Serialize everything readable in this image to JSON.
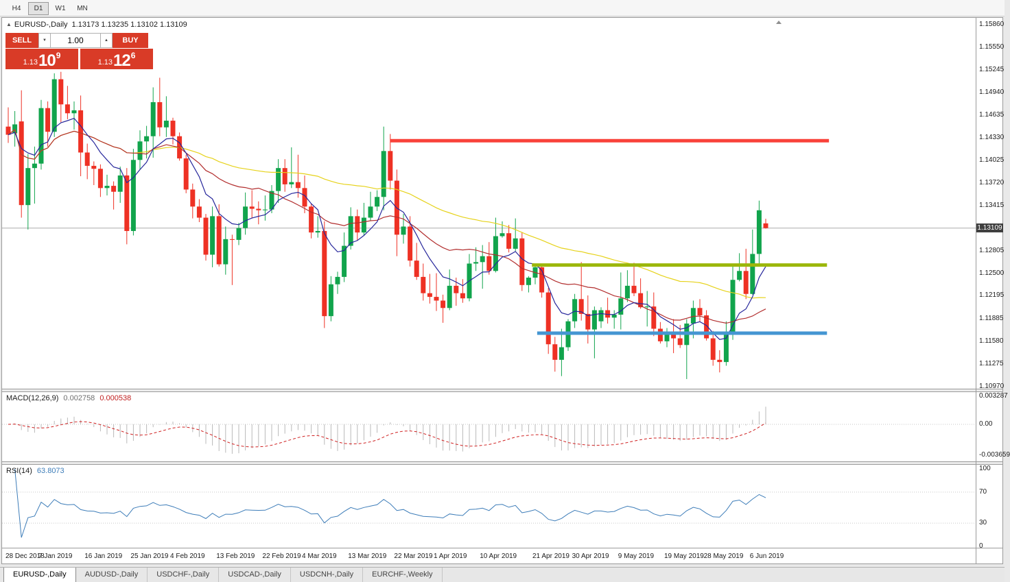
{
  "toolbar": {
    "buttons": [
      {
        "label": "H4",
        "active": false
      },
      {
        "label": "D1",
        "active": true
      },
      {
        "label": "W1",
        "active": false
      },
      {
        "label": "MN",
        "active": false
      }
    ]
  },
  "chart": {
    "title": {
      "collapse_arrow": "▲",
      "symbol": "EURUSD-,Daily",
      "ohlc": "1.13173 1.13235 1.13102 1.13109"
    },
    "trade_panel": {
      "sell_label": "SELL",
      "buy_label": "BUY",
      "volume": "1.00",
      "spin_down": "▼",
      "spin_up": "▲",
      "sell_price": {
        "prefix": "1.13",
        "big": "10",
        "sup": "9"
      },
      "buy_price": {
        "prefix": "1.13",
        "big": "12",
        "sup": "6"
      },
      "panel_color": "#d93b27"
    },
    "price_axis": {
      "labels": [
        "1.15860",
        "1.15550",
        "1.15245",
        "1.14940",
        "1.14635",
        "1.14330",
        "1.14025",
        "1.13720",
        "1.13415",
        "1.12805",
        "1.12500",
        "1.12195",
        "1.11885",
        "1.11580",
        "1.11275",
        "1.10970"
      ],
      "current_tag": "1.13109"
    },
    "date_axis": {
      "labels": [
        {
          "text": "28 Dec 2018",
          "i": 0
        },
        {
          "text": "7 Jan 2019",
          "i": 5
        },
        {
          "text": "16 Jan 2019",
          "i": 12
        },
        {
          "text": "25 Jan 2019",
          "i": 19
        },
        {
          "text": "4 Feb 2019",
          "i": 25
        },
        {
          "text": "13 Feb 2019",
          "i": 32
        },
        {
          "text": "22 Feb 2019",
          "i": 39
        },
        {
          "text": "4 Mar 2019",
          "i": 45
        },
        {
          "text": "13 Mar 2019",
          "i": 52
        },
        {
          "text": "22 Mar 2019",
          "i": 59
        },
        {
          "text": "1 Apr 2019",
          "i": 65
        },
        {
          "text": "10 Apr 2019",
          "i": 72
        },
        {
          "text": "21 Apr 2019",
          "i": 80
        },
        {
          "text": "30 Apr 2019",
          "i": 86
        },
        {
          "text": "9 May 2019",
          "i": 93
        },
        {
          "text": "19 May 2019",
          "i": 100
        },
        {
          "text": "28 May 2019",
          "i": 106
        },
        {
          "text": "6 Jun 2019",
          "i": 113
        }
      ]
    }
  },
  "macd_panel": {
    "header": "MACD(12,26,9)",
    "value_main": "0.002758",
    "value_signal": "0.000538",
    "axis": [
      {
        "text": "0.003287",
        "v": 0.003287
      },
      {
        "text": "0.00",
        "v": 0
      },
      {
        "text": "-0.003659",
        "v": -0.003659
      }
    ]
  },
  "rsi_panel": {
    "header": "RSI(14)",
    "value": "63.8073",
    "axis": [
      {
        "text": "100",
        "v": 100
      },
      {
        "text": "70",
        "v": 70
      },
      {
        "text": "30",
        "v": 30
      },
      {
        "text": "0",
        "v": 0
      }
    ]
  },
  "tabs": [
    {
      "label": "EURUSD-,Daily",
      "active": true
    },
    {
      "label": "AUDUSD-,Daily",
      "active": false
    },
    {
      "label": "USDCHF-,Daily",
      "active": false
    },
    {
      "label": "USDCAD-,Daily",
      "active": false
    },
    {
      "label": "USDCNH-,Daily",
      "active": false
    },
    {
      "label": "EURCHF-,Weekly",
      "active": false
    }
  ],
  "chart_data": {
    "type": "candlestick",
    "symbol": "EURUSD",
    "timeframe": "Daily",
    "ylim": [
      1.1094,
      1.1594
    ],
    "up_color": "#11a44c",
    "down_color": "#ee3124",
    "candles": [
      [
        1.1448,
        1.1474,
        1.1426,
        1.1437
      ],
      [
        1.1439,
        1.1469,
        1.1421,
        1.1451
      ],
      [
        1.1455,
        1.1497,
        1.1325,
        1.1342
      ],
      [
        1.1342,
        1.1411,
        1.1309,
        1.1392
      ],
      [
        1.1392,
        1.1421,
        1.1344,
        1.1398
      ],
      [
        1.1398,
        1.1484,
        1.139,
        1.1473
      ],
      [
        1.1473,
        1.1482,
        1.1421,
        1.1441
      ],
      [
        1.1441,
        1.152,
        1.1434,
        1.1512
      ],
      [
        1.1512,
        1.1522,
        1.1454,
        1.1478
      ],
      [
        1.1478,
        1.1503,
        1.1458,
        1.1466
      ],
      [
        1.1466,
        1.1482,
        1.1444,
        1.147
      ],
      [
        1.147,
        1.149,
        1.1381,
        1.1413
      ],
      [
        1.1413,
        1.1425,
        1.1377,
        1.1395
      ],
      [
        1.1395,
        1.1401,
        1.1369,
        1.1391
      ],
      [
        1.1391,
        1.1397,
        1.1353,
        1.1365
      ],
      [
        1.1365,
        1.1383,
        1.1355,
        1.1368
      ],
      [
        1.1368,
        1.1374,
        1.1336,
        1.136
      ],
      [
        1.136,
        1.1394,
        1.1345,
        1.1382
      ],
      [
        1.1382,
        1.1392,
        1.1289,
        1.1307
      ],
      [
        1.1307,
        1.1418,
        1.1301,
        1.1403
      ],
      [
        1.1403,
        1.1443,
        1.139,
        1.1428
      ],
      [
        1.1428,
        1.1449,
        1.1405,
        1.1435
      ],
      [
        1.1435,
        1.1501,
        1.1406,
        1.1481
      ],
      [
        1.1481,
        1.1514,
        1.1435,
        1.1447
      ],
      [
        1.1447,
        1.1489,
        1.1434,
        1.1456
      ],
      [
        1.1456,
        1.146,
        1.1424,
        1.1435
      ],
      [
        1.1435,
        1.144,
        1.1402,
        1.1405
      ],
      [
        1.1405,
        1.141,
        1.1358,
        1.1363
      ],
      [
        1.1363,
        1.1371,
        1.1324,
        1.134
      ],
      [
        1.134,
        1.135,
        1.1319,
        1.1325
      ],
      [
        1.1325,
        1.133,
        1.1267,
        1.1275
      ],
      [
        1.1275,
        1.134,
        1.1258,
        1.1327
      ],
      [
        1.1327,
        1.1343,
        1.1259,
        1.1262
      ],
      [
        1.1262,
        1.1313,
        1.1248,
        1.1296
      ],
      [
        1.1296,
        1.1302,
        1.1234,
        1.1295
      ],
      [
        1.1295,
        1.1318,
        1.1288,
        1.1311
      ],
      [
        1.1311,
        1.1359,
        1.1302,
        1.134
      ],
      [
        1.134,
        1.1362,
        1.1324,
        1.1337
      ],
      [
        1.1337,
        1.1347,
        1.1316,
        1.1335
      ],
      [
        1.1335,
        1.1355,
        1.1321,
        1.1336
      ],
      [
        1.1336,
        1.1369,
        1.1331,
        1.1361
      ],
      [
        1.1361,
        1.1404,
        1.1345,
        1.1392
      ],
      [
        1.1392,
        1.1404,
        1.136,
        1.137
      ],
      [
        1.137,
        1.142,
        1.1365,
        1.1373
      ],
      [
        1.1373,
        1.141,
        1.1352,
        1.1365
      ],
      [
        1.1365,
        1.1382,
        1.1331,
        1.134
      ],
      [
        1.134,
        1.1344,
        1.1297,
        1.1305
      ],
      [
        1.1305,
        1.1327,
        1.1298,
        1.1307
      ],
      [
        1.1307,
        1.132,
        1.1176,
        1.1192
      ],
      [
        1.1192,
        1.1246,
        1.1185,
        1.1235
      ],
      [
        1.1235,
        1.1252,
        1.1222,
        1.1245
      ],
      [
        1.1245,
        1.1305,
        1.1238,
        1.1287
      ],
      [
        1.1287,
        1.1339,
        1.1282,
        1.1327
      ],
      [
        1.1327,
        1.1336,
        1.1294,
        1.1305
      ],
      [
        1.1305,
        1.1345,
        1.1301,
        1.1325
      ],
      [
        1.1325,
        1.136,
        1.1321,
        1.134
      ],
      [
        1.134,
        1.1362,
        1.1334,
        1.1353
      ],
      [
        1.1353,
        1.1448,
        1.1335,
        1.1415
      ],
      [
        1.1415,
        1.1438,
        1.1363,
        1.1375
      ],
      [
        1.1375,
        1.139,
        1.1273,
        1.1302
      ],
      [
        1.1302,
        1.133,
        1.129,
        1.1313
      ],
      [
        1.1313,
        1.1327,
        1.1259,
        1.1267
      ],
      [
        1.1267,
        1.1291,
        1.1241,
        1.1245
      ],
      [
        1.1245,
        1.1263,
        1.1213,
        1.1223
      ],
      [
        1.1223,
        1.1249,
        1.1209,
        1.1218
      ],
      [
        1.1218,
        1.125,
        1.1199,
        1.1213
      ],
      [
        1.1213,
        1.1221,
        1.1183,
        1.1203
      ],
      [
        1.1203,
        1.1255,
        1.12,
        1.1233
      ],
      [
        1.1233,
        1.1244,
        1.1206,
        1.1223
      ],
      [
        1.1223,
        1.1242,
        1.121,
        1.1216
      ],
      [
        1.1216,
        1.1276,
        1.1212,
        1.1263
      ],
      [
        1.1263,
        1.1285,
        1.1253,
        1.1265
      ],
      [
        1.1265,
        1.1288,
        1.1229,
        1.1273
      ],
      [
        1.1273,
        1.1292,
        1.1248,
        1.1253
      ],
      [
        1.1253,
        1.1325,
        1.1251,
        1.13
      ],
      [
        1.13,
        1.132,
        1.1298,
        1.1304
      ],
      [
        1.1304,
        1.1315,
        1.1278,
        1.1283
      ],
      [
        1.1283,
        1.1324,
        1.128,
        1.1297
      ],
      [
        1.1297,
        1.1305,
        1.1226,
        1.1234
      ],
      [
        1.1234,
        1.1246,
        1.1224,
        1.1244
      ],
      [
        1.1244,
        1.1263,
        1.1235,
        1.1258
      ],
      [
        1.1258,
        1.1262,
        1.1217,
        1.1224
      ],
      [
        1.1224,
        1.123,
        1.1141,
        1.1154
      ],
      [
        1.1154,
        1.1164,
        1.1117,
        1.1133
      ],
      [
        1.1133,
        1.1175,
        1.1111,
        1.115
      ],
      [
        1.115,
        1.1188,
        1.1145,
        1.1185
      ],
      [
        1.1185,
        1.1222,
        1.1176,
        1.1215
      ],
      [
        1.1215,
        1.1265,
        1.1186,
        1.1195
      ],
      [
        1.1195,
        1.122,
        1.1155,
        1.1174
      ],
      [
        1.1174,
        1.1205,
        1.1135,
        1.12
      ],
      [
        1.1185,
        1.1204,
        1.1176,
        1.12
      ],
      [
        1.12,
        1.1217,
        1.1182,
        1.119
      ],
      [
        1.119,
        1.12,
        1.1175,
        1.1194
      ],
      [
        1.1194,
        1.1251,
        1.1174,
        1.1216
      ],
      [
        1.1216,
        1.1254,
        1.1211,
        1.1233
      ],
      [
        1.1233,
        1.1264,
        1.1219,
        1.1223
      ],
      [
        1.1223,
        1.1243,
        1.1202,
        1.1204
      ],
      [
        1.1204,
        1.1226,
        1.1178,
        1.1205
      ],
      [
        1.1205,
        1.1224,
        1.1165,
        1.1175
      ],
      [
        1.1175,
        1.1184,
        1.1155,
        1.1158
      ],
      [
        1.1158,
        1.1176,
        1.115,
        1.1167
      ],
      [
        1.1167,
        1.1188,
        1.1142,
        1.1162
      ],
      [
        1.1162,
        1.118,
        1.1149,
        1.1153
      ],
      [
        1.1153,
        1.1188,
        1.1107,
        1.1182
      ],
      [
        1.1182,
        1.1213,
        1.1162,
        1.1203
      ],
      [
        1.1203,
        1.1215,
        1.1184,
        1.1193
      ],
      [
        1.1193,
        1.12,
        1.1159,
        1.1162
      ],
      [
        1.1162,
        1.1172,
        1.1125,
        1.1133
      ],
      [
        1.1133,
        1.1146,
        1.1116,
        1.113
      ],
      [
        1.113,
        1.1185,
        1.1125,
        1.1168
      ],
      [
        1.1168,
        1.1263,
        1.116,
        1.1241
      ],
      [
        1.1241,
        1.1277,
        1.1239,
        1.1253
      ],
      [
        1.1253,
        1.1283,
        1.1215,
        1.1222
      ],
      [
        1.1222,
        1.1309,
        1.1221,
        1.1276
      ],
      [
        1.1276,
        1.1348,
        1.1262,
        1.1335
      ],
      [
        1.13173,
        1.13235,
        1.13102,
        1.13109
      ]
    ],
    "moving_averages": [
      {
        "name": "fast",
        "period": 8,
        "method": "ema",
        "color": "#26269b"
      },
      {
        "name": "medium",
        "period": 20,
        "method": "sma",
        "color": "#b22e2e"
      },
      {
        "name": "slow",
        "period": 55,
        "method": "sma",
        "color": "#e6d219"
      }
    ],
    "hlines": [
      {
        "name": "resistance",
        "price": 1.1429,
        "i1": 58,
        "i2": 124.6,
        "color": "#f9423a",
        "width": 5
      },
      {
        "name": "mid-level",
        "price": 1.1261,
        "i1": 79.5,
        "i2": 124.3,
        "color": "#9cb70b",
        "width": 5
      },
      {
        "name": "support",
        "price": 1.1169,
        "i1": 80.3,
        "i2": 124.3,
        "color": "#4596d2",
        "width": 5
      }
    ],
    "bid_line": {
      "price": 1.13109,
      "color": "#ababab"
    },
    "macd": {
      "fast": 12,
      "slow": 26,
      "signal": 9,
      "hist_color": "#b9b9b9",
      "signal_color": "#cf1f1f",
      "scale": 12500
    },
    "rsi": {
      "period": 14,
      "color": "#3c7cb8",
      "levels": [
        70,
        30
      ]
    }
  }
}
